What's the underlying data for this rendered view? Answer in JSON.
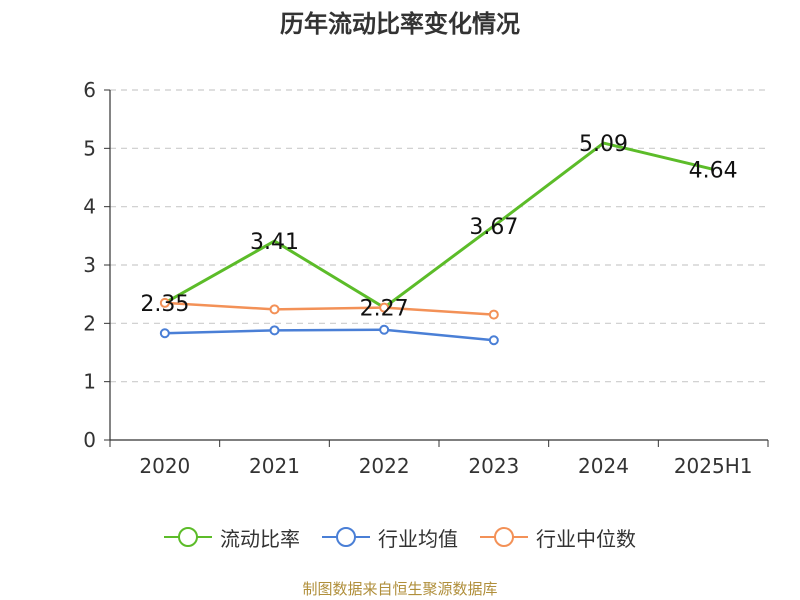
{
  "title": "历年流动比率变化情况",
  "source": "制图数据来自恒生聚源数据库",
  "chart_data": {
    "type": "line",
    "categories": [
      "2020",
      "2021",
      "2022",
      "2023",
      "2024",
      "2025H1"
    ],
    "ylim": [
      0,
      6
    ],
    "yticks": [
      0,
      1,
      2,
      3,
      4,
      5,
      6
    ],
    "grid": true,
    "legend_position": "bottom",
    "series": [
      {
        "name": "流动比率",
        "color": "#5cbc29",
        "values": [
          2.35,
          3.41,
          2.27,
          3.67,
          5.09,
          4.64
        ],
        "labels": [
          "2.35",
          "3.41",
          "2.27",
          "3.67",
          "5.09",
          "4.64"
        ]
      },
      {
        "name": "行业均值",
        "color": "#4a7fd6",
        "values": [
          1.83,
          1.88,
          1.89,
          1.71,
          null,
          null
        ]
      },
      {
        "name": "行业中位数",
        "color": "#f39157",
        "values": [
          2.35,
          2.24,
          2.27,
          2.15,
          null,
          null
        ]
      }
    ]
  }
}
